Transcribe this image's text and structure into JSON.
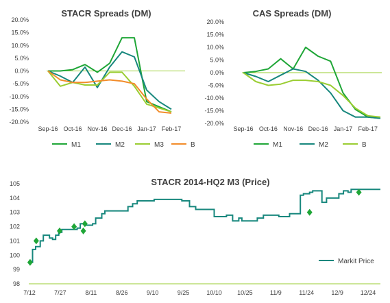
{
  "colors": {
    "green": "#1fa637",
    "teal": "#17877d",
    "lime": "#9acd32",
    "orange": "#f28c2a",
    "axis": "#9acd32"
  },
  "chart_data": [
    {
      "id": "stacr",
      "type": "line",
      "title": "STACR Spreads (DM)",
      "categories": [
        "Sep-16",
        "Oct-16",
        "Nov-16",
        "Dec-16",
        "Jan-17",
        "Feb-17"
      ],
      "yticks": [
        "20.0%",
        "15.0%",
        "10.0%",
        "5.0%",
        "0.0%",
        "-5.0%",
        "-10.0%",
        "-15.0%",
        "-20.0%"
      ],
      "ylim": [
        -20,
        20
      ],
      "x": [
        0,
        0.5,
        1,
        1.5,
        2,
        2.5,
        3,
        3.5,
        4,
        4.5,
        5,
        5.5
      ],
      "series": [
        {
          "name": "M1",
          "color": "#1fa637",
          "values": [
            0,
            0,
            0.5,
            2.5,
            -0.5,
            3,
            13,
            13,
            -12,
            -14,
            -16,
            null
          ]
        },
        {
          "name": "M2",
          "color": "#17877d",
          "values": [
            0,
            -2,
            -4.5,
            1.5,
            -6.5,
            1.5,
            7.5,
            5.5,
            -7.5,
            -12,
            -15,
            null
          ]
        },
        {
          "name": "M3",
          "color": "#9acd32",
          "values": [
            0,
            -6,
            -4.5,
            -5.5,
            -5.5,
            -0.5,
            -0.5,
            -6,
            -13,
            -14.5,
            -16,
            null
          ]
        },
        {
          "name": "B",
          "color": "#f28c2a",
          "values": [
            0,
            -3.5,
            -4.5,
            -4.5,
            -4,
            -3.5,
            -4,
            -5,
            -11,
            -16,
            -16.5,
            null
          ]
        }
      ],
      "legend": [
        "M1",
        "M2",
        "M3",
        "B"
      ]
    },
    {
      "id": "cas",
      "type": "line",
      "title": "CAS Spreads (DM)",
      "categories": [
        "Sep-16",
        "Oct-16",
        "Nov-16",
        "Dec-16",
        "Jan-17",
        "Feb-17"
      ],
      "yticks": [
        "20.0%",
        "15.0%",
        "10.0%",
        "5.0%",
        "0.0%",
        "-5.0%",
        "-10.0%",
        "-15.0%",
        "-20.0%"
      ],
      "ylim": [
        -20,
        20
      ],
      "x": [
        0,
        0.5,
        1,
        1.5,
        2,
        2.5,
        3,
        3.5,
        4,
        4.5,
        5,
        5.5
      ],
      "series": [
        {
          "name": "M1",
          "color": "#1fa637",
          "values": [
            0,
            0.5,
            1.5,
            5.5,
            1.5,
            10,
            6.5,
            4.5,
            -8,
            -14.5,
            -17.5,
            -18
          ]
        },
        {
          "name": "M2",
          "color": "#17877d",
          "values": [
            0,
            -1.5,
            -3.5,
            -1,
            1.5,
            0.5,
            -3,
            -8,
            -15,
            -17.5,
            -17.5,
            -18
          ]
        },
        {
          "name": "B",
          "color": "#9acd32",
          "values": [
            0,
            -3.5,
            -5,
            -4.5,
            -3,
            -3,
            -3.5,
            -5,
            -9,
            -14,
            -17,
            -17.5
          ]
        }
      ],
      "legend": [
        "M1",
        "M2",
        "B"
      ]
    },
    {
      "id": "price",
      "type": "line",
      "title": "STACR 2014-HQ2 M3 (Price)",
      "categories": [
        "7/12",
        "7/27",
        "8/11",
        "8/26",
        "9/10",
        "9/25",
        "10/10",
        "10/25",
        "11/9",
        "11/24",
        "12/9",
        "12/24"
      ],
      "yticks": [
        "105",
        "104",
        "103",
        "102",
        "101",
        "100",
        "99",
        "98"
      ],
      "ylim": [
        98,
        105
      ],
      "series": [
        {
          "name": "Markit Price",
          "color": "#17877d",
          "x": [
            0,
            0.05,
            0.1,
            0.2,
            0.35,
            0.45,
            0.55,
            0.65,
            0.75,
            0.85,
            0.95,
            1.05,
            1.15,
            1.25,
            1.35,
            1.45,
            1.55,
            1.65,
            1.75,
            1.85,
            1.95,
            2.05,
            2.15,
            2.25,
            2.35,
            2.45,
            2.55,
            2.7,
            2.9,
            3.05,
            3.2,
            3.35,
            3.5,
            3.65,
            3.8,
            3.95,
            4.05,
            4.2,
            4.4,
            4.6,
            4.8,
            4.95,
            5.05,
            5.2,
            5.4,
            5.6,
            5.8,
            6.0,
            6.2,
            6.4,
            6.6,
            6.8,
            6.9,
            7.0,
            7.2,
            7.4,
            7.6,
            7.8,
            7.9,
            8.0,
            8.1,
            8.2,
            8.3,
            8.45,
            8.6,
            8.8,
            8.9,
            9.0,
            9.1,
            9.2,
            9.35,
            9.5,
            9.65,
            9.8,
            9.95,
            10.05,
            10.2,
            10.35,
            10.45,
            10.5,
            10.6,
            10.7,
            10.8,
            10.95,
            11.1,
            11.25,
            11.4
          ],
          "values": [
            99.5,
            99.5,
            100.4,
            100.6,
            101.0,
            101.4,
            101.4,
            101.2,
            101.1,
            101.4,
            101.6,
            101.8,
            101.8,
            101.8,
            101.8,
            101.8,
            101.9,
            102.2,
            102.2,
            102.1,
            102.1,
            102.2,
            102.6,
            102.6,
            102.9,
            103.1,
            103.1,
            103.1,
            103.1,
            103.1,
            103.4,
            103.6,
            103.8,
            103.8,
            103.8,
            103.8,
            103.9,
            103.9,
            103.9,
            103.9,
            103.9,
            103.8,
            103.8,
            103.4,
            103.2,
            103.2,
            103.2,
            102.7,
            102.7,
            102.8,
            102.4,
            102.6,
            102.4,
            102.4,
            102.4,
            102.6,
            102.8,
            102.8,
            102.8,
            102.8,
            102.7,
            102.7,
            102.7,
            102.9,
            102.9,
            104.2,
            104.3,
            104.3,
            104.4,
            104.5,
            104.5,
            103.7,
            104.0,
            104.0,
            104.0,
            104.3,
            104.5,
            104.4,
            104.6,
            104.6,
            104.6,
            104.6,
            104.6,
            104.6,
            104.6,
            104.6,
            104.6
          ]
        }
      ],
      "markers": {
        "color": "#1fa637",
        "x": [
          0.02,
          0.22,
          0.98,
          1.45,
          1.75,
          1.8,
          9.1,
          10.7
        ],
        "values": [
          99.5,
          101.0,
          101.7,
          102.0,
          101.7,
          102.2,
          103.0,
          104.4
        ]
      },
      "legend": [
        "Markit Price"
      ]
    }
  ]
}
